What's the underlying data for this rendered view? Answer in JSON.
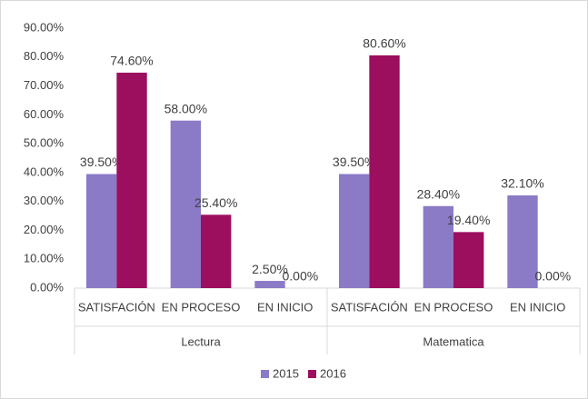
{
  "chart_data": {
    "type": "bar",
    "groups": [
      {
        "name": "Lectura",
        "categories": [
          "SATISFACIÓN",
          "EN PROCESO",
          "EN INICIO"
        ]
      },
      {
        "name": "Matematica",
        "categories": [
          "SATISFACIÓN",
          "EN PROCESO",
          "EN INICIO"
        ]
      }
    ],
    "series": [
      {
        "name": "2015",
        "color": "#8b7ac6",
        "values": [
          39.5,
          58,
          2.5,
          39.5,
          28.4,
          32.1
        ],
        "value_labels": [
          "39.50%",
          "58.00%",
          "2.50%",
          "39.50%",
          "28.40%",
          "32.10%"
        ]
      },
      {
        "name": "2016",
        "color": "#9c0e5e",
        "values": [
          74.6,
          25.4,
          0,
          80.6,
          19.4,
          0
        ],
        "value_labels": [
          "74.60%",
          "25.40%",
          "0.00%",
          "80.60%",
          "19.40%",
          "0.00%"
        ]
      }
    ],
    "ylim": [
      0,
      90
    ],
    "yticks": [
      {
        "value": 0,
        "label": "0.00%"
      },
      {
        "value": 10,
        "label": "10.00%"
      },
      {
        "value": 20,
        "label": "20.00%"
      },
      {
        "value": 30,
        "label": "30.00%"
      },
      {
        "value": 40,
        "label": "40.00%"
      },
      {
        "value": 50,
        "label": "50.00%"
      },
      {
        "value": 60,
        "label": "60.00%"
      },
      {
        "value": 70,
        "label": "70.00%"
      },
      {
        "value": 80,
        "label": "80.00%"
      },
      {
        "value": 90,
        "label": "90.00%"
      }
    ],
    "grid": false,
    "legend": "bottom"
  }
}
